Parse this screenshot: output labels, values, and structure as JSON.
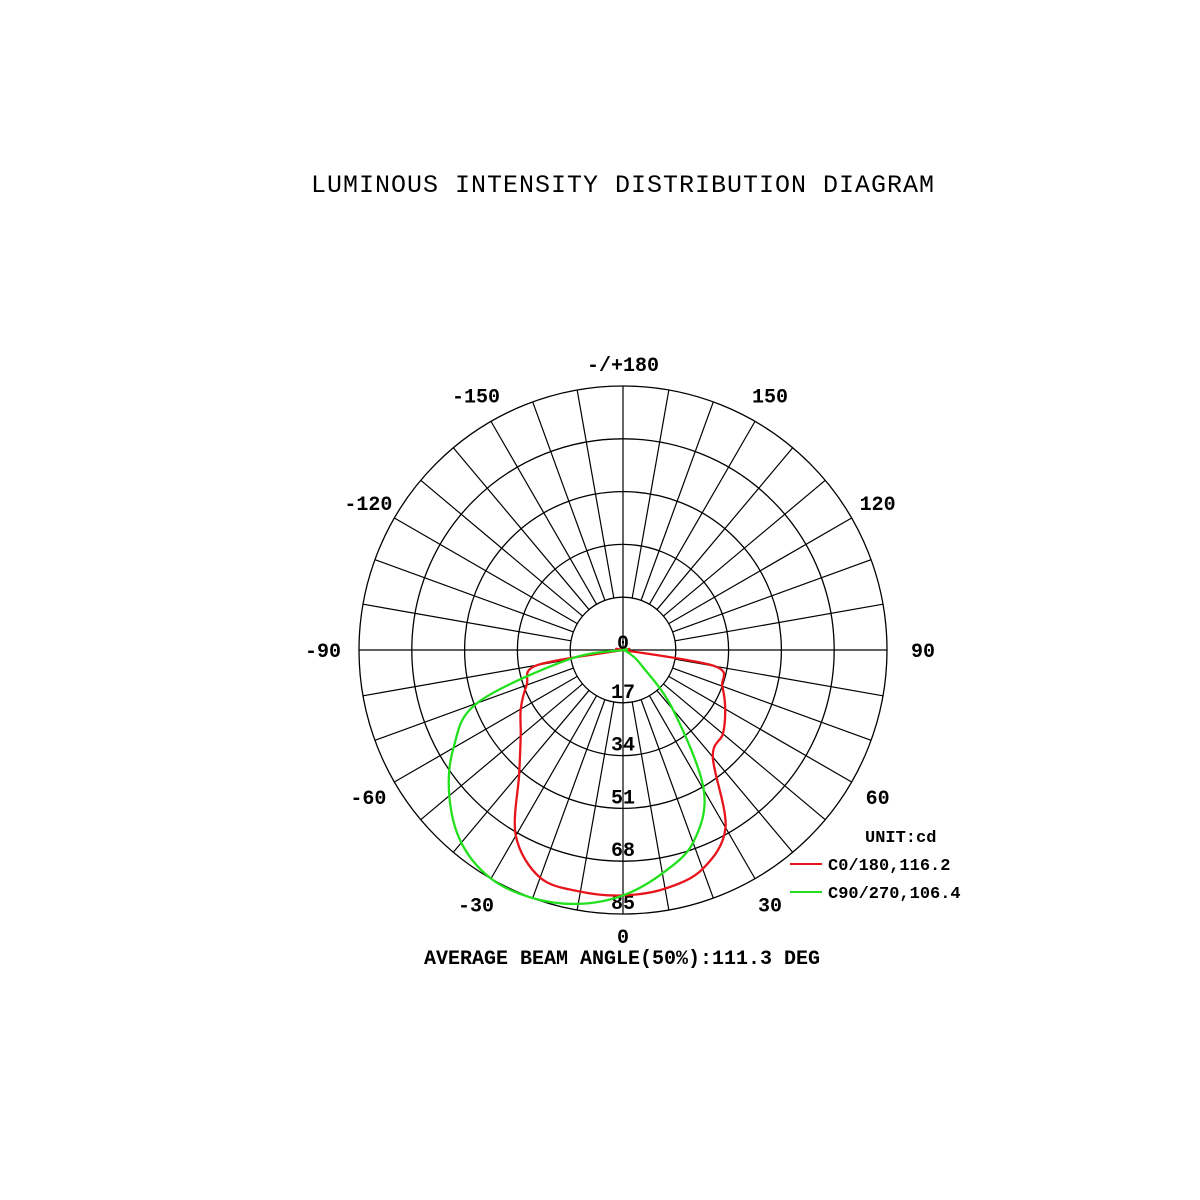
{
  "chart_data": {
    "type": "polar-line",
    "title": "LUMINOUS INTENSITY DISTRIBUTION DIAGRAM",
    "footer": "AVERAGE BEAM ANGLE(50%):111.3 DEG",
    "unit_label": "UNIT:cd",
    "radial_ticks": [
      "0",
      "17",
      "34",
      "51",
      "68",
      "85"
    ],
    "radial_values": [
      0,
      17,
      34,
      51,
      68,
      85
    ],
    "rmax": 85,
    "angle_labels": [
      {
        "angle": 180,
        "text": "-/+180"
      },
      {
        "angle": -150,
        "text": "-150"
      },
      {
        "angle": 150,
        "text": "150"
      },
      {
        "angle": -120,
        "text": "-120"
      },
      {
        "angle": 120,
        "text": "120"
      },
      {
        "angle": -90,
        "text": "-90"
      },
      {
        "angle": 90,
        "text": "90"
      },
      {
        "angle": -60,
        "text": "-60"
      },
      {
        "angle": 60,
        "text": "60"
      },
      {
        "angle": -30,
        "text": "-30"
      },
      {
        "angle": 30,
        "text": "30"
      },
      {
        "angle": 0,
        "text": "0"
      }
    ],
    "angle_grid_step_deg": 10,
    "grid": true,
    "legend_position": "bottom-right",
    "angles": [
      -90,
      -80,
      -70,
      -60,
      -50,
      -40,
      -30,
      -20,
      -10,
      0,
      10,
      20,
      30,
      40,
      50,
      60,
      70,
      80,
      90
    ],
    "series": [
      {
        "name": "C0/180,116.2",
        "color": "#e8141c",
        "values": [
          0,
          28,
          33,
          38,
          43,
          52,
          69,
          78,
          79,
          79,
          78,
          75,
          66,
          45,
          42,
          38,
          34,
          30,
          0
        ]
      },
      {
        "name": "C90/270,106.4",
        "color": "#22e01e",
        "values": [
          0,
          18,
          50,
          63,
          73,
          81,
          85,
          85,
          83,
          79,
          73,
          66,
          52,
          25,
          8,
          3,
          1,
          0,
          0
        ]
      }
    ]
  }
}
